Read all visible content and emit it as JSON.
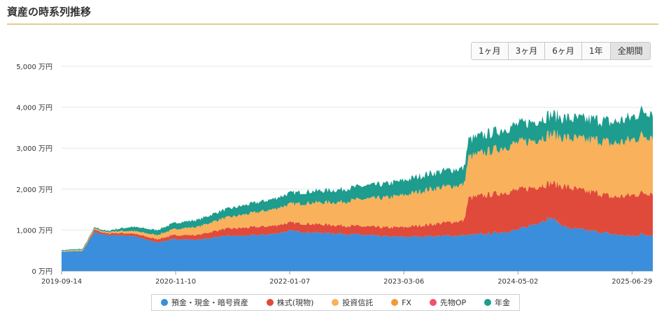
{
  "page": {
    "title": "資産の時系列推移"
  },
  "range_buttons": [
    {
      "label": "1ヶ月",
      "active": false
    },
    {
      "label": "3ヶ月",
      "active": false
    },
    {
      "label": "6ヶ月",
      "active": false
    },
    {
      "label": "1年",
      "active": false
    },
    {
      "label": "全期間",
      "active": true
    }
  ],
  "chart_data": {
    "type": "area",
    "stacked": true,
    "title": "",
    "xlabel": "",
    "ylabel": "",
    "ylim": [
      0,
      5000
    ],
    "y_unit": "万円",
    "y_ticks": [
      0,
      1000,
      2000,
      3000,
      4000,
      5000
    ],
    "y_tick_labels": [
      "0 万円",
      "1,000 万円",
      "2,000 万円",
      "3,000 万円",
      "4,000 万円",
      "5,000 万円"
    ],
    "x_tick_labels": [
      "2019-09-14",
      "2020-11-10",
      "2022-01-07",
      "2023-03-06",
      "2024-05-02",
      "2025-06-29"
    ],
    "xlim": [
      "2019-09-14",
      "2025-09-14"
    ],
    "grid": true,
    "legend_position": "bottom",
    "x": [
      "2019-09-14",
      "2019-12-01",
      "2020-01-15",
      "2020-03-01",
      "2020-03-20",
      "2020-06-01",
      "2020-09-01",
      "2020-11-10",
      "2021-02-01",
      "2021-05-01",
      "2021-08-01",
      "2021-11-01",
      "2022-01-07",
      "2022-04-01",
      "2022-07-01",
      "2022-10-01",
      "2023-01-01",
      "2023-03-06",
      "2023-06-01",
      "2023-09-01",
      "2023-10-15",
      "2023-11-01",
      "2024-01-01",
      "2024-03-01",
      "2024-05-02",
      "2024-07-01",
      "2024-09-01",
      "2024-11-01",
      "2025-01-01",
      "2025-03-01",
      "2025-04-15",
      "2025-06-29",
      "2025-08-01",
      "2025-09-14"
    ],
    "series": [
      {
        "name": "預金・現金・暗号資産",
        "color": "#3a8edb",
        "values": [
          470,
          490,
          950,
          870,
          880,
          860,
          700,
          780,
          760,
          850,
          860,
          900,
          980,
          940,
          920,
          880,
          840,
          830,
          850,
          860,
          870,
          880,
          900,
          950,
          1000,
          1150,
          1300,
          1050,
          1000,
          950,
          900,
          850,
          900,
          880
        ]
      },
      {
        "name": "株式(現物)",
        "color": "#e04a3a",
        "values": [
          0,
          0,
          60,
          40,
          50,
          60,
          80,
          100,
          120,
          170,
          200,
          200,
          200,
          210,
          200,
          210,
          220,
          240,
          280,
          340,
          360,
          900,
          950,
          960,
          980,
          900,
          850,
          1000,
          950,
          950,
          900,
          1000,
          1000,
          1050
        ]
      },
      {
        "name": "投資信託",
        "color": "#f9b15c",
        "values": [
          20,
          30,
          30,
          30,
          40,
          60,
          100,
          150,
          200,
          260,
          330,
          400,
          450,
          520,
          560,
          660,
          730,
          780,
          860,
          880,
          880,
          1000,
          1050,
          1100,
          1150,
          1150,
          1200,
          1200,
          1250,
          1300,
          1300,
          1350,
          1400,
          1400
        ]
      },
      {
        "name": "FX",
        "color": "#f39a3a",
        "values": [
          0,
          0,
          0,
          0,
          0,
          0,
          0,
          0,
          0,
          0,
          0,
          0,
          0,
          0,
          0,
          0,
          0,
          0,
          0,
          0,
          0,
          0,
          0,
          0,
          0,
          0,
          0,
          0,
          0,
          0,
          0,
          0,
          0,
          0
        ]
      },
      {
        "name": "先物OP",
        "color": "#f0516b",
        "values": [
          0,
          0,
          0,
          0,
          0,
          0,
          0,
          0,
          0,
          0,
          0,
          0,
          0,
          0,
          0,
          0,
          0,
          0,
          0,
          0,
          0,
          0,
          0,
          0,
          0,
          0,
          0,
          0,
          0,
          0,
          0,
          0,
          0,
          0
        ]
      },
      {
        "name": "年金",
        "color": "#1e9c8e",
        "values": [
          20,
          20,
          30,
          30,
          40,
          100,
          120,
          150,
          170,
          200,
          230,
          250,
          270,
          280,
          300,
          320,
          340,
          360,
          380,
          400,
          400,
          420,
          430,
          440,
          450,
          460,
          470,
          480,
          500,
          500,
          520,
          550,
          600,
          600
        ]
      }
    ]
  }
}
